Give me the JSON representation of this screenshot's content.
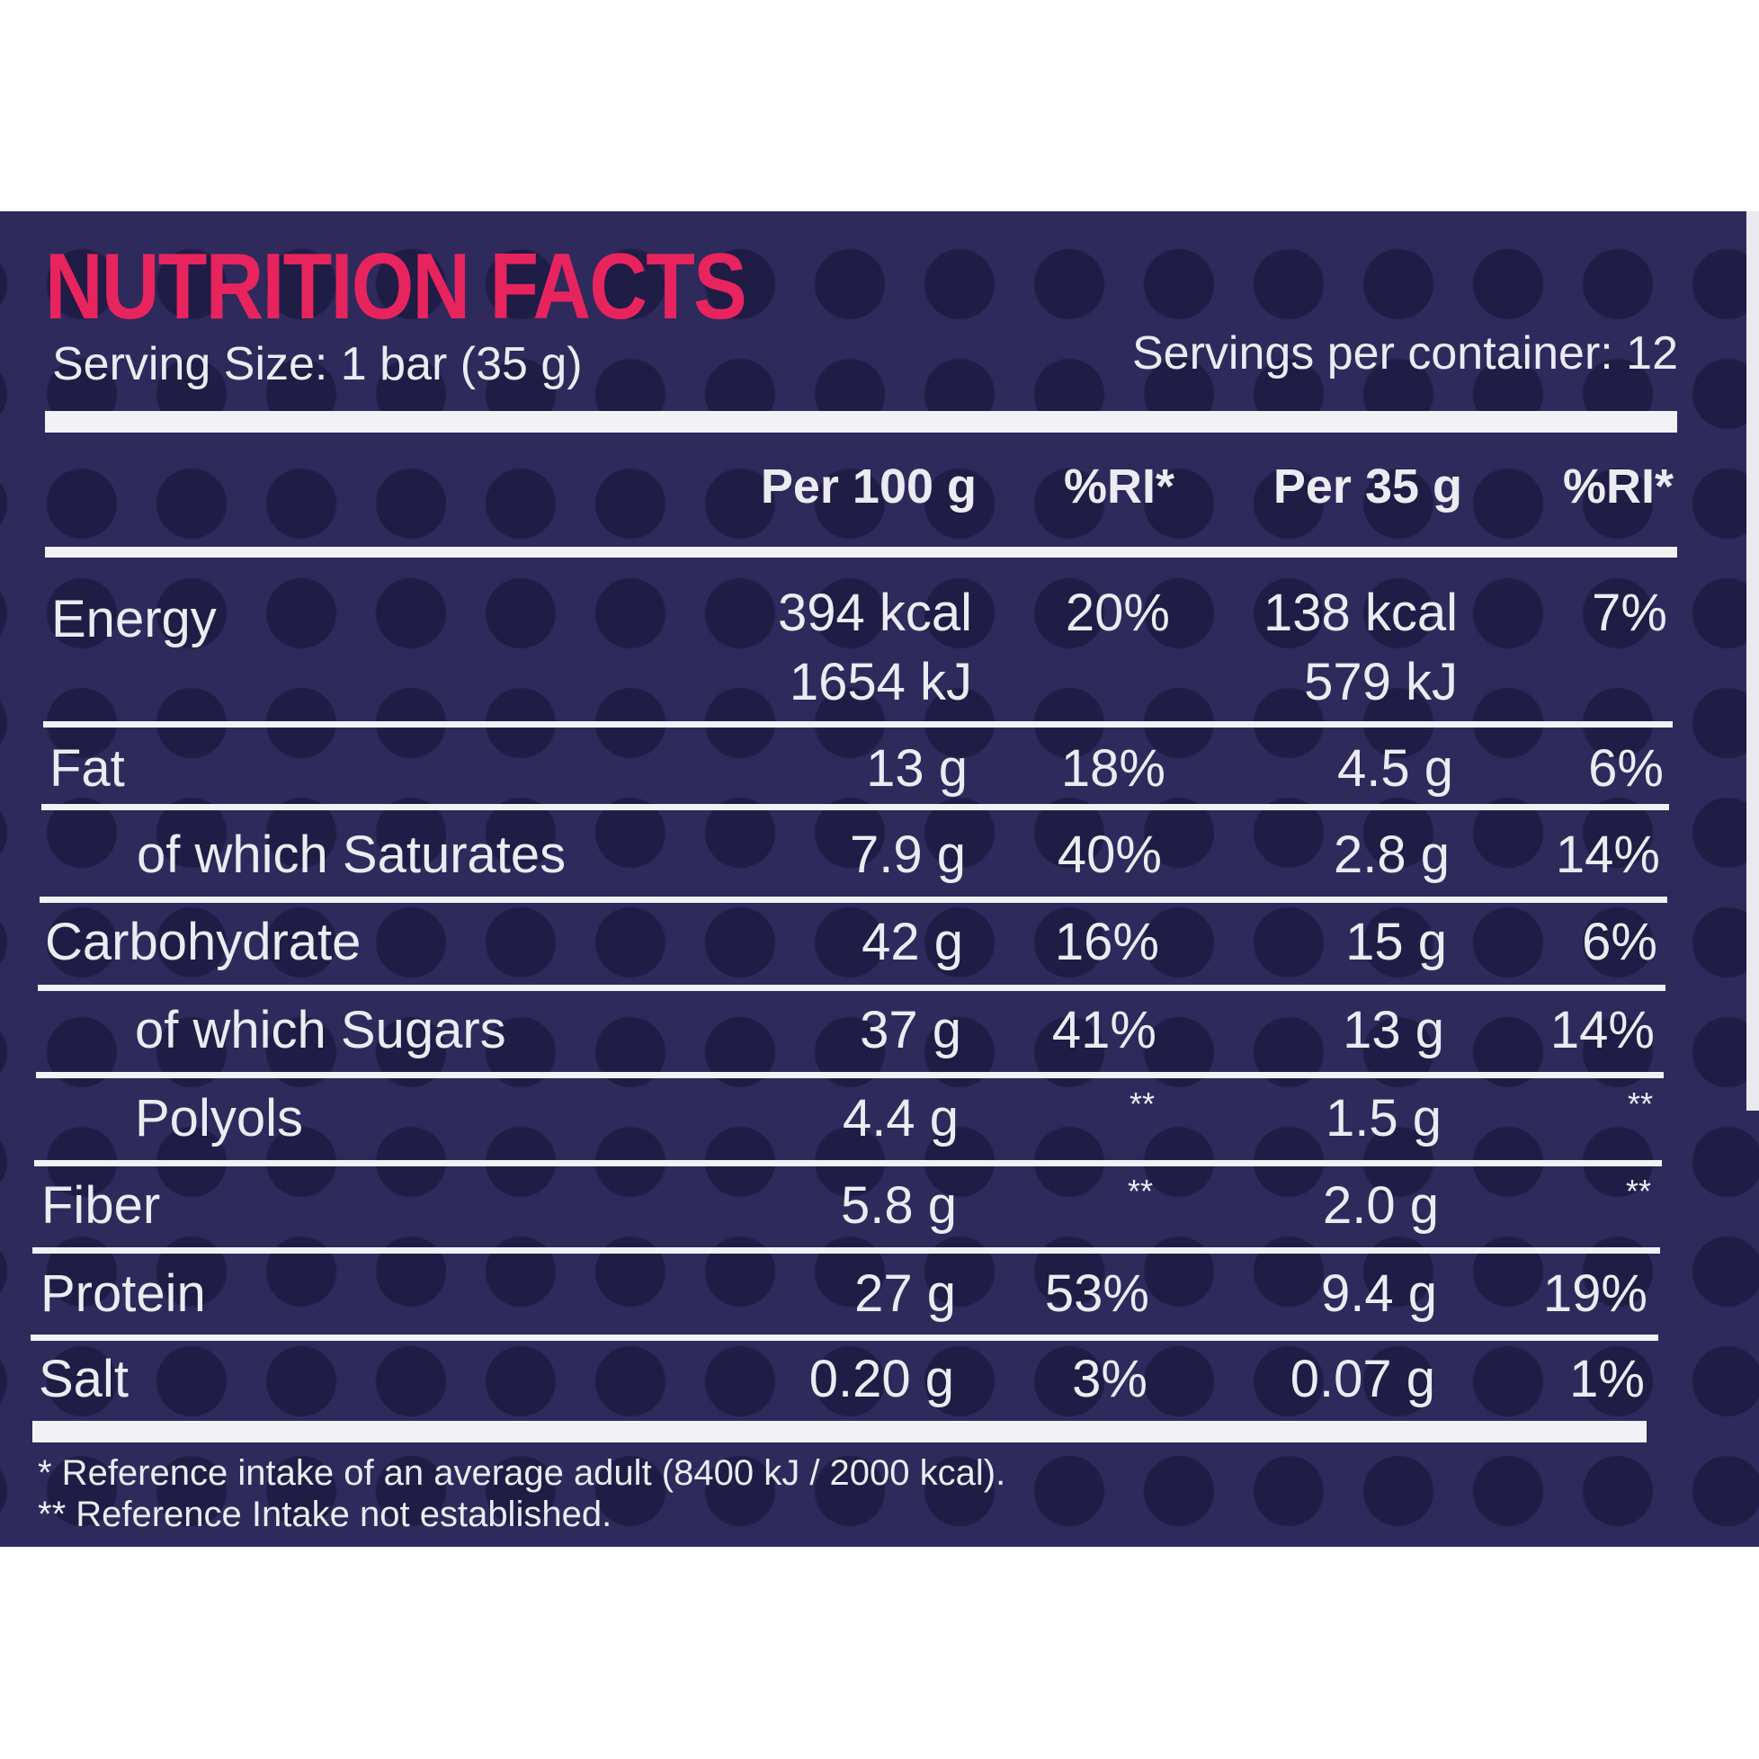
{
  "title": "NUTRITION FACTS",
  "serving_size": "Serving Size: 1 bar (35 g)",
  "servings_per_container": "Servings per container: 12",
  "columns": [
    "Per 100 g",
    "%RI*",
    "Per 35 g",
    "%RI*"
  ],
  "rows": [
    {
      "name": "Energy",
      "per100": "394 kcal",
      "per100_b": "1654 kJ",
      "ri100": "20%",
      "per35": "138 kcal",
      "per35_b": "579 kJ",
      "ri35": "7%"
    },
    {
      "name": "Fat",
      "per100": "13 g",
      "ri100": "18%",
      "per35": "4.5 g",
      "ri35": "6%"
    },
    {
      "name": "of which Saturates",
      "per100": "7.9 g",
      "ri100": "40%",
      "per35": "2.8 g",
      "ri35": "14%"
    },
    {
      "name": "Carbohydrate",
      "per100": "42 g",
      "ri100": "16%",
      "per35": "15 g",
      "ri35": "6%"
    },
    {
      "name": "of which Sugars",
      "per100": "37 g",
      "ri100": "41%",
      "per35": "13 g",
      "ri35": "14%"
    },
    {
      "name": "Polyols",
      "per100": "4.4 g",
      "ri100": "**",
      "per35": "1.5 g",
      "ri35": "**"
    },
    {
      "name": "Fiber",
      "per100": "5.8 g",
      "ri100": "**",
      "per35": "2.0 g",
      "ri35": "**"
    },
    {
      "name": "Protein",
      "per100": "27 g",
      "ri100": "53%",
      "per35": "9.4 g",
      "ri35": "19%"
    },
    {
      "name": "Salt",
      "per100": "0.20 g",
      "ri100": "3%",
      "per35": "0.07 g",
      "ri35": "1%"
    }
  ],
  "footnotes": [
    "* Reference intake of an average adult (8400 kJ / 2000 kcal).",
    "** Reference Intake not established."
  ],
  "colors": {
    "panel": "#2e2a5c",
    "title": "#e8245f",
    "text": "#ecebf2"
  }
}
